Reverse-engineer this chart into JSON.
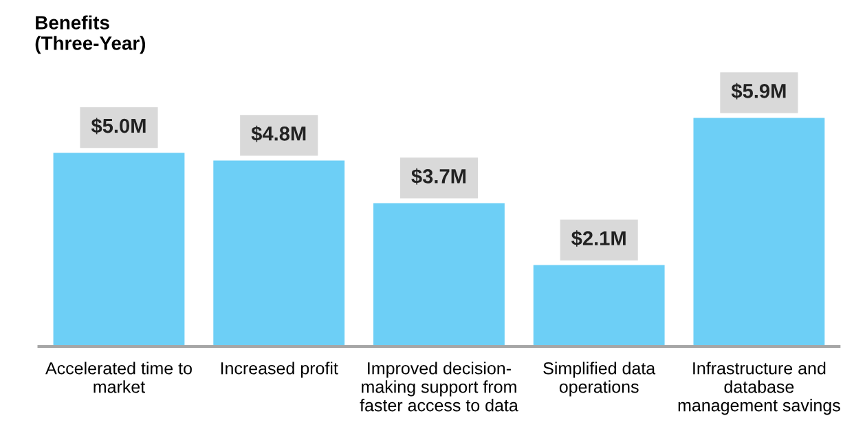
{
  "chart_data": {
    "type": "bar",
    "title": "Benefits\n(Three-Year)",
    "categories": [
      "Accelerated time to\nmarket",
      "Increased profit",
      "Improved decision-\nmaking support from\nfaster access to data",
      "Simplified data\noperations",
      "Infrastructure and\ndatabase\nmanagement savings"
    ],
    "values": [
      5.0,
      4.8,
      3.7,
      2.1,
      5.9
    ],
    "value_labels": [
      "$5.0M",
      "$4.8M",
      "$3.7M",
      "$2.1M",
      "$5.9M"
    ],
    "color": "#6dcff6",
    "grid": false,
    "legend": false
  }
}
